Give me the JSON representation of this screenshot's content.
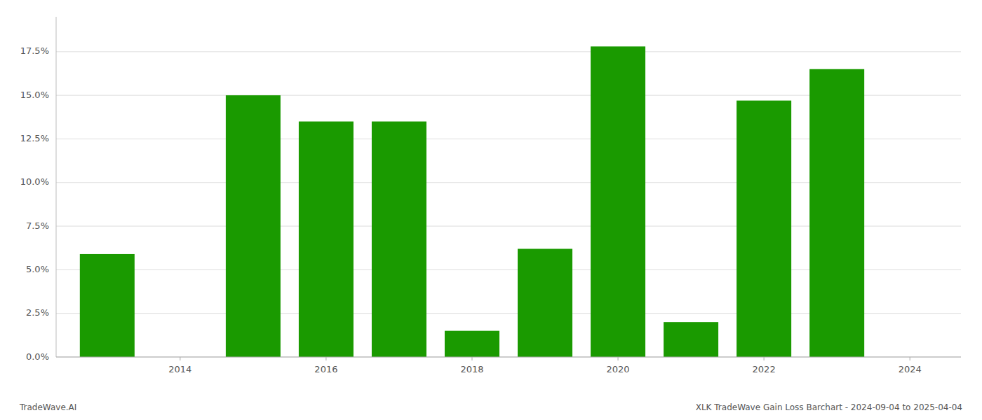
{
  "chart_data": {
    "type": "bar",
    "x": [
      2013,
      2015,
      2016,
      2017,
      2018,
      2019,
      2020,
      2021,
      2022,
      2023
    ],
    "values": [
      0.059,
      0.15,
      0.135,
      0.135,
      0.015,
      0.062,
      0.178,
      0.02,
      0.147,
      0.165
    ],
    "color": "#1a9a00",
    "xlim": [
      2012.3,
      2024.7
    ],
    "xticks": [
      2014,
      2016,
      2018,
      2020,
      2022,
      2024
    ],
    "ylim": [
      0.0,
      0.195
    ],
    "yticks": [
      {
        "value": 0.0,
        "label": "0.0%"
      },
      {
        "value": 0.025,
        "label": "2.5%"
      },
      {
        "value": 0.05,
        "label": "5.0%"
      },
      {
        "value": 0.075,
        "label": "7.5%"
      },
      {
        "value": 0.1,
        "label": "10.0%"
      },
      {
        "value": 0.125,
        "label": "12.5%"
      },
      {
        "value": 0.15,
        "label": "15.0%"
      },
      {
        "value": 0.175,
        "label": "17.5%"
      }
    ],
    "grid": true,
    "annotations": [
      "TradeWave.AI",
      "XLK TradeWave Gain Loss Barchart - 2024-09-04 to 2025-04-04"
    ]
  }
}
